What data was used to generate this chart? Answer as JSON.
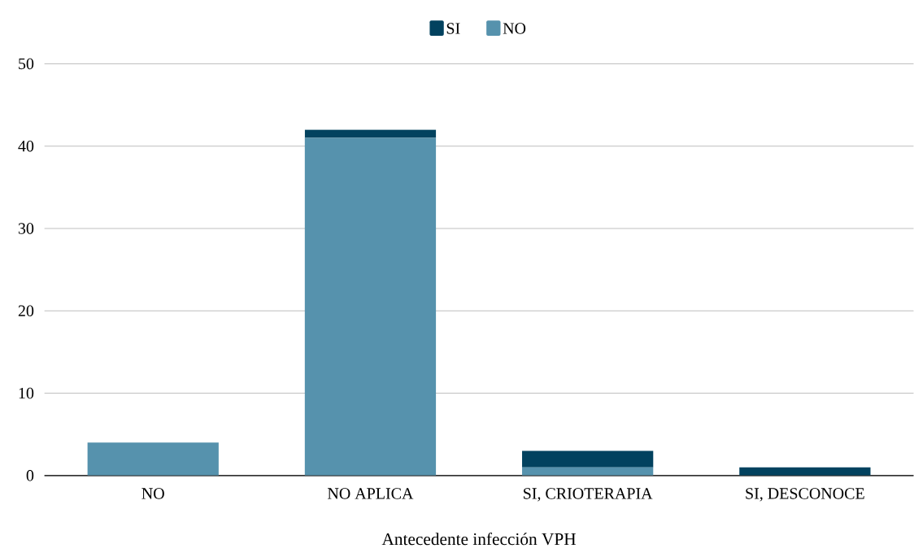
{
  "chart_data": {
    "type": "bar",
    "stacked": true,
    "xlabel": "Antecedente infección VPH",
    "categories": [
      "NO",
      "NO APLICA",
      "SI, CRIOTERAPIA",
      "SI, DESCONOCE"
    ],
    "series": [
      {
        "name": "NO",
        "color": "#5692ad",
        "values": [
          4,
          41,
          1,
          0
        ]
      },
      {
        "name": "SI",
        "color": "#02425f",
        "values": [
          0,
          1,
          2,
          1
        ]
      }
    ],
    "ylim": [
      0,
      50
    ],
    "yticks": [
      0,
      10,
      20,
      30,
      40,
      50
    ],
    "grid": "y",
    "legend": "top"
  }
}
